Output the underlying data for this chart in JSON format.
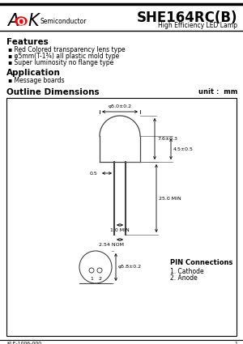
{
  "title": "SHE164RC(B)",
  "subtitle": "High Efficiency LED Lamp",
  "brand_sub": "Semiconductor",
  "features_title": "Features",
  "features": [
    "Red Colored transparency lens type",
    "φ5mm(T-1¾) all plastic mold type",
    "Super luminosity no flange type"
  ],
  "app_title": "Application",
  "app_items": [
    "Message boards"
  ],
  "outline_title": "Outline Dimensions",
  "unit_label": "unit :  mm",
  "dim_labels": {
    "top_dia": "φ5.0±0.2",
    "height": "7.6±0.3",
    "body_height": "4.5±0.5",
    "lead_offset": "0.5",
    "lead_length": "25.0 MIN",
    "lead_min": "1.0 MIN",
    "lead_spacing": "2.54 NOM",
    "bottom_dia": "φ5.8±0.2"
  },
  "pin_title": "PIN Connections",
  "pin1": "1. Cathode",
  "pin2": "2. Anode",
  "footer": "KLE-1006-000",
  "footer_page": "1",
  "bg_color": "#ffffff"
}
